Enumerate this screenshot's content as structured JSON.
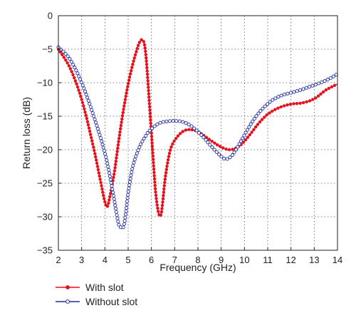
{
  "chart_data": {
    "type": "line",
    "title": "",
    "xlabel": "Frequency (GHz)",
    "ylabel": "Return loss (dB)",
    "xlim": [
      2,
      14
    ],
    "ylim": [
      -35,
      0
    ],
    "xticks": [
      2,
      3,
      4,
      5,
      6,
      7,
      8,
      9,
      10,
      11,
      12,
      13,
      14
    ],
    "yticks": [
      0,
      -5,
      -10,
      -15,
      -20,
      -25,
      -30,
      -35
    ],
    "grid": true,
    "legend_position": "bottom-left, below plot",
    "series": [
      {
        "name": "With slot",
        "color": "#e8101a",
        "marker": "filled-circle",
        "x": [
          2.0,
          2.5,
          3.0,
          3.5,
          3.8,
          4.0,
          4.1,
          4.2,
          4.4,
          4.6,
          4.8,
          5.0,
          5.2,
          5.4,
          5.5,
          5.6,
          5.7,
          5.8,
          6.0,
          6.2,
          6.4,
          6.6,
          6.8,
          7.0,
          7.3,
          7.6,
          8.0,
          8.5,
          9.0,
          9.4,
          9.8,
          10.2,
          10.6,
          11.0,
          11.5,
          12.0,
          12.5,
          13.0,
          13.5,
          14.0
        ],
        "y": [
          -5.0,
          -7.8,
          -12.5,
          -19.5,
          -24.5,
          -27.8,
          -28.5,
          -27.2,
          -23.5,
          -18.5,
          -14.0,
          -10.2,
          -7.2,
          -4.8,
          -3.9,
          -3.6,
          -4.3,
          -7.5,
          -17.5,
          -27.0,
          -29.8,
          -24.0,
          -20.2,
          -18.6,
          -17.4,
          -17.0,
          -17.3,
          -18.5,
          -19.6,
          -20.0,
          -19.4,
          -17.9,
          -16.1,
          -14.7,
          -13.7,
          -13.2,
          -13.0,
          -12.4,
          -11.1,
          -10.2
        ]
      },
      {
        "name": "Without slot",
        "color": "#1f2fa0",
        "marker": "open-circle",
        "x": [
          2.0,
          2.5,
          3.0,
          3.5,
          4.0,
          4.3,
          4.5,
          4.6,
          4.7,
          4.8,
          4.9,
          5.0,
          5.2,
          5.5,
          5.8,
          6.0,
          6.3,
          6.6,
          7.0,
          7.4,
          7.8,
          8.2,
          8.6,
          9.0,
          9.2,
          9.4,
          9.6,
          10.0,
          10.4,
          10.8,
          11.2,
          11.6,
          12.0,
          12.4,
          12.8,
          13.2,
          13.6,
          14.0
        ],
        "y": [
          -4.7,
          -6.5,
          -10.0,
          -14.8,
          -20.5,
          -25.5,
          -29.5,
          -31.2,
          -31.6,
          -31.5,
          -29.5,
          -26.5,
          -22.5,
          -19.5,
          -17.7,
          -16.9,
          -16.1,
          -15.8,
          -15.7,
          -15.9,
          -16.7,
          -18.0,
          -19.6,
          -21.0,
          -21.4,
          -21.1,
          -20.2,
          -17.8,
          -15.5,
          -13.8,
          -12.6,
          -11.9,
          -11.5,
          -11.1,
          -10.6,
          -10.1,
          -9.5,
          -8.7
        ]
      }
    ]
  }
}
